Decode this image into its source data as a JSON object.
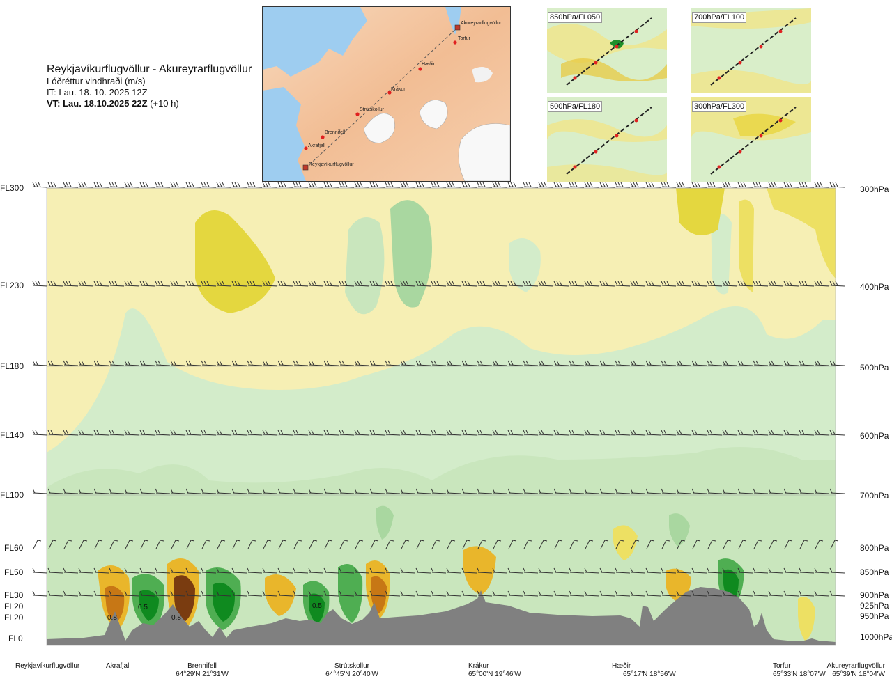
{
  "header": {
    "route": "Reykjavíkurflugvöllur - Akureyrarflugvöllur",
    "variable": "Lóðréttur vindhraði (m/s)",
    "it": "IT: Lau. 18. 10. 2025 12Z",
    "vt_bold": "VT: Lau. 18.10.2025 22Z",
    "vt_rest": " (+10 h)"
  },
  "map": {
    "waypoints": [
      {
        "name": "Akureyrarflugvöllur"
      },
      {
        "name": "Torfur"
      },
      {
        "name": "Hæðir"
      },
      {
        "name": "Krákur"
      },
      {
        "name": "Strútskollur"
      },
      {
        "name": "Brennifell"
      },
      {
        "name": "Akrafjall"
      },
      {
        "name": "Reykjavíkurflugvöllur"
      }
    ]
  },
  "thumbnails": [
    {
      "label": "850hPa/FL050"
    },
    {
      "label": "700hPa/FL100"
    },
    {
      "label": "500hPa/FL180"
    },
    {
      "label": "300hPa/FL300"
    }
  ],
  "chart_data": {
    "type": "heatmap",
    "title": "Lóðréttur vindhraði (m/s)",
    "xlabel": "",
    "ylabel": "",
    "y_levels": [
      {
        "fl": "FL300",
        "hpa": "300hPa"
      },
      {
        "fl": "FL230",
        "hpa": "400hPa"
      },
      {
        "fl": "FL180",
        "hpa": "500hPa"
      },
      {
        "fl": "FL140",
        "hpa": "600hPa"
      },
      {
        "fl": "FL100",
        "hpa": "700hPa"
      },
      {
        "fl": "FL60",
        "hpa": "800hPa"
      },
      {
        "fl": "FL50",
        "hpa": "850hPa"
      },
      {
        "fl": "FL30",
        "hpa": "900hPa"
      },
      {
        "fl": "FL20",
        "hpa": "925hPa"
      },
      {
        "fl": "FL20",
        "hpa": "950hPa"
      },
      {
        "fl": "FL0",
        "hpa": "1000hPa"
      }
    ],
    "x_points": [
      {
        "name": "Reykjavíkurflugvöllur",
        "coord": ""
      },
      {
        "name": "Akrafjall",
        "coord": ""
      },
      {
        "name": "Brennifell",
        "coord": "64°29'N 21°31'W"
      },
      {
        "name": "Strútskollur",
        "coord": "64°45'N 20°40'W"
      },
      {
        "name": "Krákur",
        "coord": "65°00'N 19°46'W"
      },
      {
        "name": "Hæðir",
        "coord": "65°17'N 18°56'W"
      },
      {
        "name": "Torfur",
        "coord": "65°33'N 18°07'W"
      },
      {
        "name": "Akureyrarflugvöllur",
        "coord": "65°39'N 18°04'W"
      }
    ],
    "contour_labels": [
      "0.8",
      "0.5",
      "0.8",
      "0.5"
    ],
    "colors": {
      "strong_up": "#0f8a1f",
      "up_mid": "#4fae52",
      "up_light": "#a9d7a0",
      "up_faint": "#d3ecca",
      "neutral": "#fbfbe8",
      "down_faint": "#f6efb4",
      "down_light": "#ede063",
      "down_mid": "#e9b62b",
      "down_strong": "#c77715",
      "down_max": "#7a3c10",
      "terrain": "#808080"
    }
  }
}
